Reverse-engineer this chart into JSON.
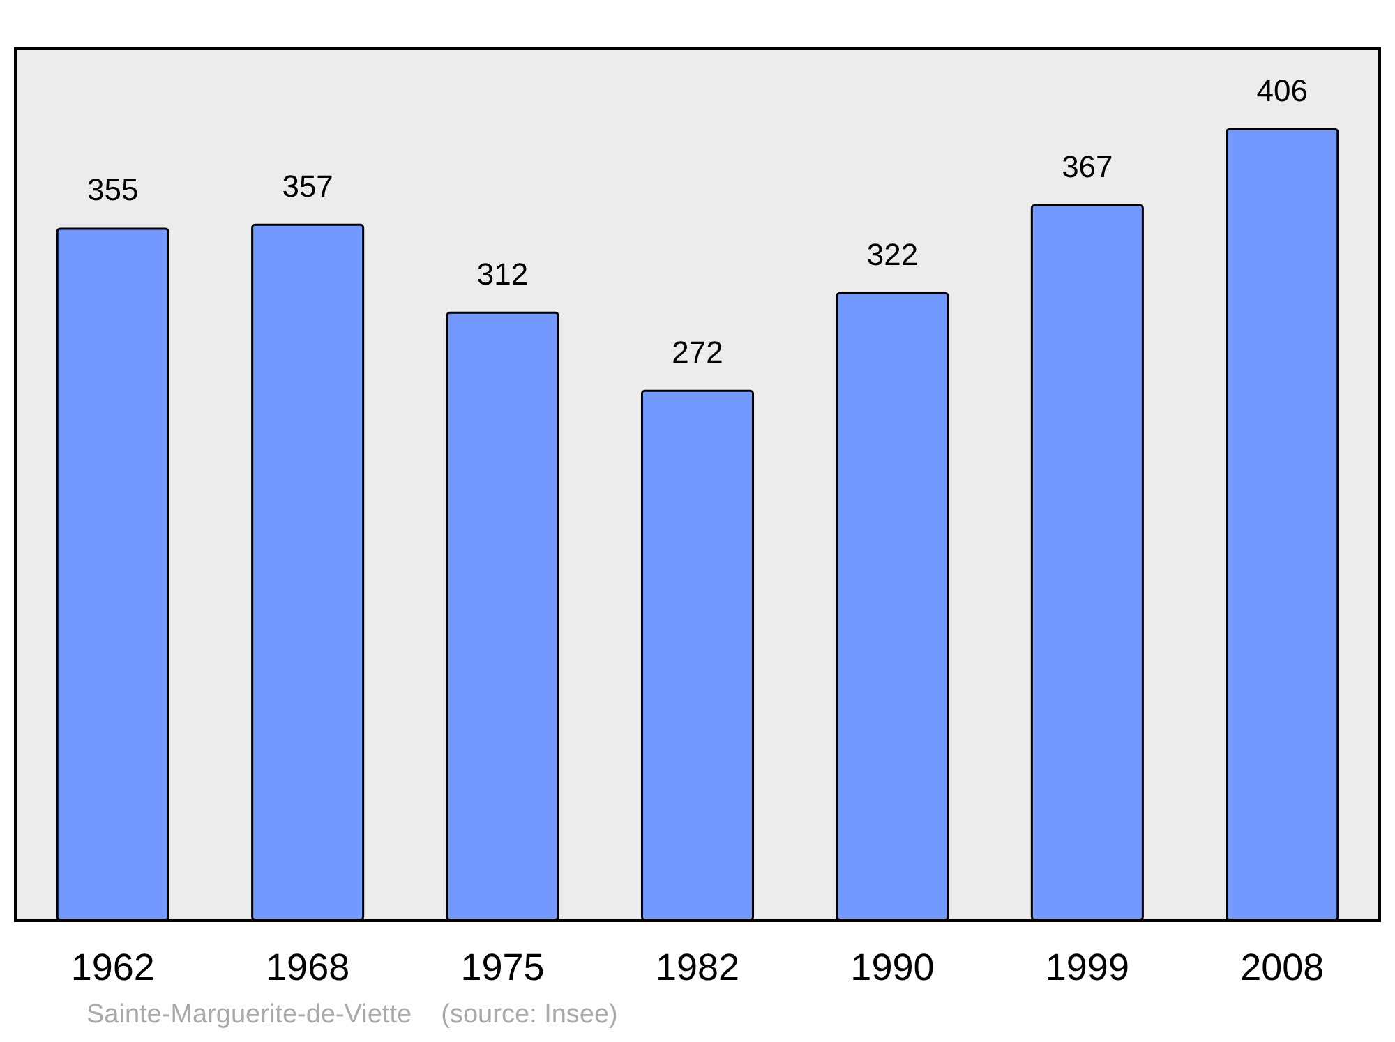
{
  "chart_data": {
    "type": "bar",
    "categories": [
      "1962",
      "1968",
      "1975",
      "1982",
      "1990",
      "1999",
      "2008"
    ],
    "values": [
      355,
      357,
      312,
      272,
      322,
      367,
      406
    ],
    "color": "#7399ff",
    "data_labels": true,
    "annotations": [
      "Sainte-Marguerite-de-Viette    (source: Insee)"
    ]
  }
}
